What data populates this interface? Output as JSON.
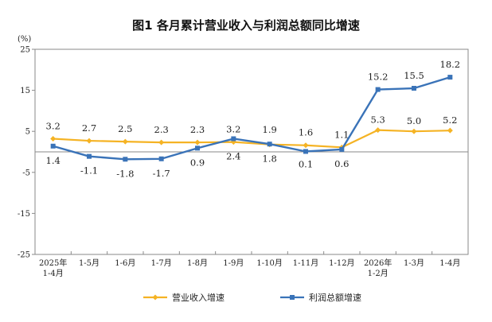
{
  "chart_data": {
    "type": "line",
    "title": "图1 各月累计营业收入与利润总额同比增速",
    "unit_label": "(%)",
    "ylim": [
      -25,
      25
    ],
    "yticks": [
      "25",
      "15",
      "5",
      "-5",
      "-15",
      "-25"
    ],
    "categories": [
      [
        "2025年",
        "1-4月"
      ],
      [
        "1-5月"
      ],
      [
        "1-6月"
      ],
      [
        "1-7月"
      ],
      [
        "1-8月"
      ],
      [
        "1-9月"
      ],
      [
        "1-10月"
      ],
      [
        "1-11月"
      ],
      [
        "1-12月"
      ],
      [
        "2026年",
        "1-2月"
      ],
      [
        "1-3月"
      ],
      [
        "1-4月"
      ]
    ],
    "series": [
      {
        "name": "营业收入增速",
        "color": "#f5b324",
        "values": [
          3.2,
          2.7,
          2.5,
          2.3,
          2.3,
          2.4,
          1.8,
          1.6,
          1.1,
          5.3,
          5.0,
          5.2
        ],
        "labels": [
          "3.2",
          "2.7",
          "2.5",
          "2.3",
          "2.3",
          "2.4",
          "1.8",
          "1.6",
          "1.1",
          "5.3",
          "5.0",
          "5.2"
        ]
      },
      {
        "name": "利润总额增速",
        "color": "#3a73b8",
        "values": [
          1.4,
          -1.1,
          -1.8,
          -1.7,
          0.9,
          3.2,
          1.9,
          0.1,
          0.6,
          15.2,
          15.5,
          18.2
        ],
        "labels": [
          "1.4",
          "-1.1",
          "-1.8",
          "-1.7",
          "0.9",
          "3.2",
          "1.9",
          "0.1",
          "0.6",
          "15.2",
          "15.5",
          "18.2"
        ]
      }
    ],
    "grid": false,
    "legend_position": "bottom"
  }
}
